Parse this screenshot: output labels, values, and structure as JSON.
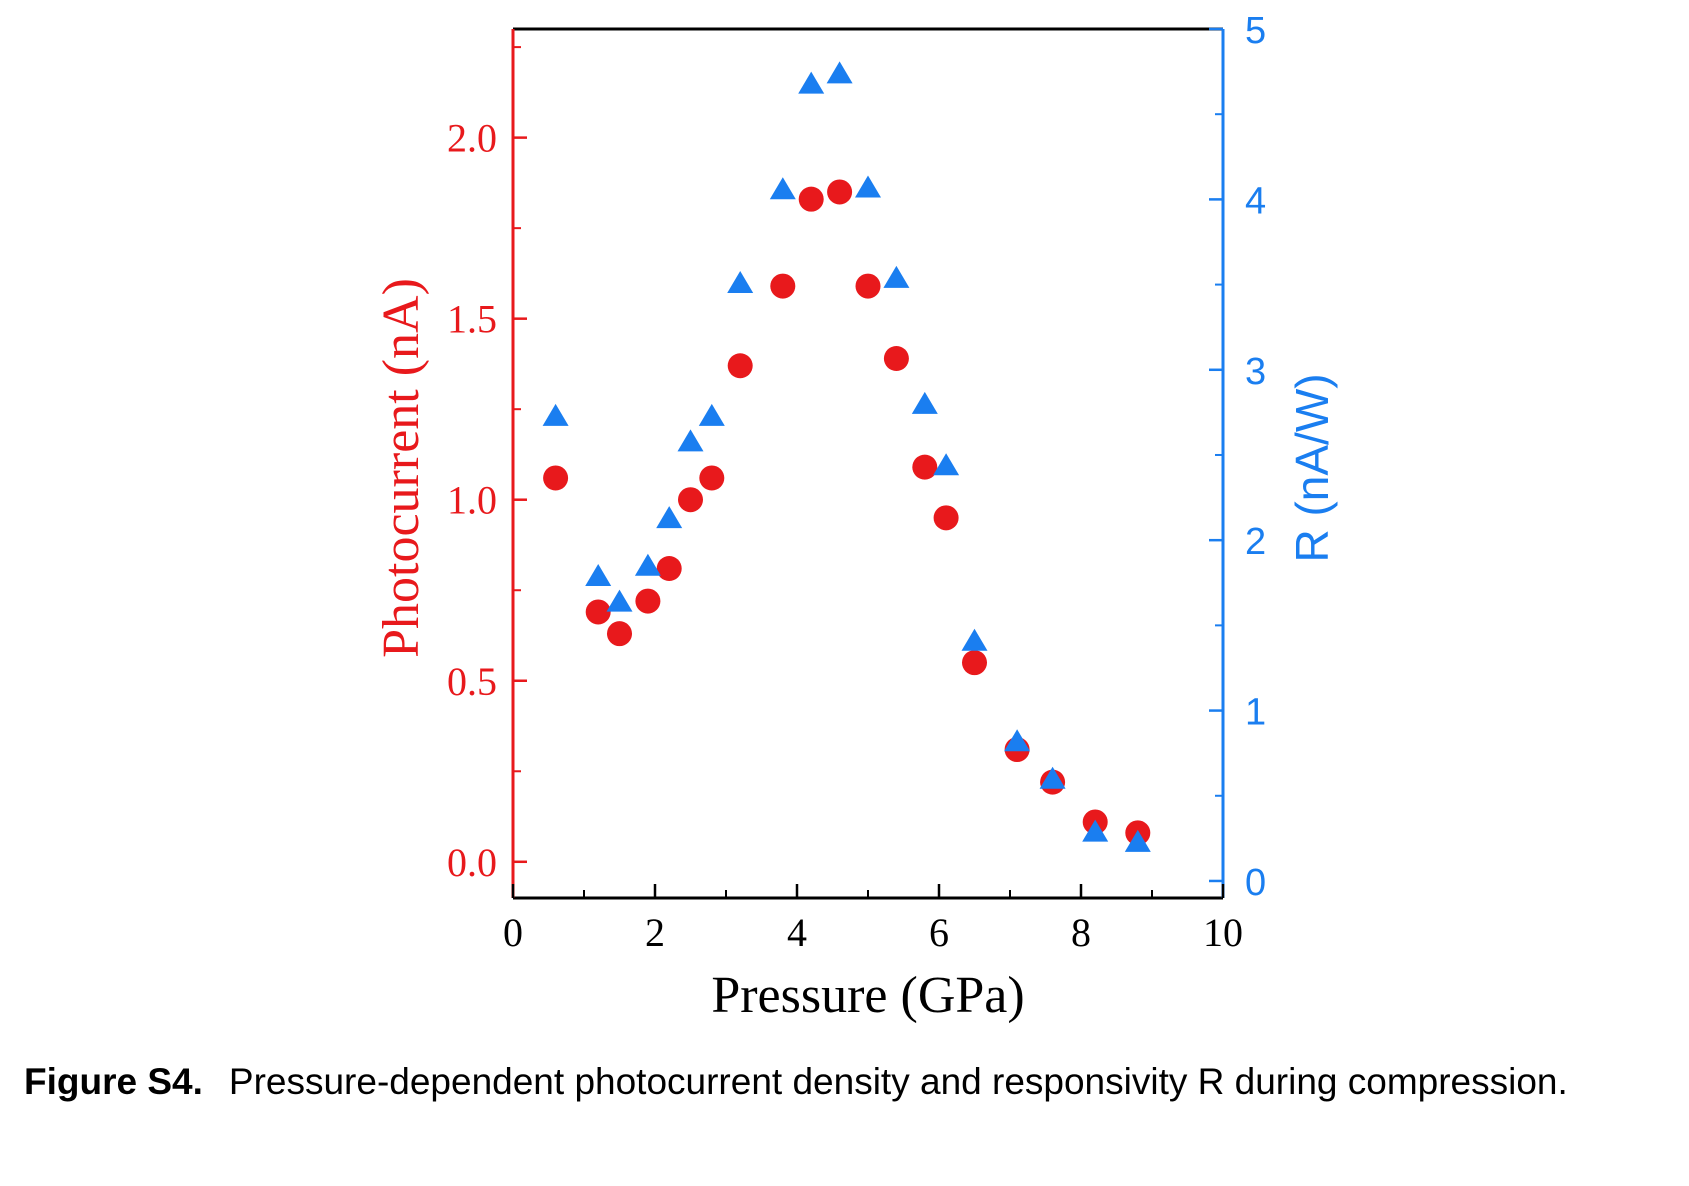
{
  "caption": {
    "label": "Figure S4.",
    "text": "Pressure-dependent photocurrent density and responsivity R during compression."
  },
  "chart_data": {
    "type": "scatter",
    "title": "",
    "xlabel": "Pressure (GPa)",
    "ylabel_left": "Photocurrent (nA)",
    "ylabel_right": "R (nA/W)",
    "xlim": [
      0,
      10
    ],
    "ylim_left": [
      -0.1,
      2.3
    ],
    "ylim_right": [
      -0.1,
      5.0
    ],
    "x_ticks": [
      0,
      2,
      4,
      6,
      8,
      10
    ],
    "x_tick_labels": [
      "0",
      "2",
      "4",
      "6",
      "8",
      "10"
    ],
    "y_left_ticks": [
      0.0,
      0.5,
      1.0,
      1.5,
      2.0
    ],
    "y_left_tick_labels": [
      "0.0",
      "0.5",
      "1.0",
      "1.5",
      "2.0"
    ],
    "y_right_ticks": [
      0,
      1,
      2,
      3,
      4,
      5
    ],
    "y_right_tick_labels": [
      "0",
      "1",
      "2",
      "3",
      "4",
      "5"
    ],
    "grid": false,
    "colors": {
      "left_axis": "#e8191c",
      "right_axis": "#1a7ef0",
      "frame": "#000000"
    },
    "series": [
      {
        "marker": "circle",
        "axis": "left",
        "color": "#e8191c",
        "x": [
          0.6,
          1.2,
          1.5,
          1.9,
          2.2,
          2.5,
          2.8,
          3.2,
          3.8,
          4.2,
          4.6,
          5.0,
          5.4,
          5.8,
          6.1,
          6.5,
          7.1,
          7.6,
          8.2,
          8.8
        ],
        "y": [
          1.06,
          0.69,
          0.63,
          0.72,
          0.81,
          1.0,
          1.06,
          1.37,
          1.59,
          1.83,
          1.85,
          1.59,
          1.39,
          1.09,
          0.95,
          0.55,
          0.31,
          0.22,
          0.11,
          0.08
        ]
      },
      {
        "marker": "triangle",
        "axis": "right",
        "color": "#1a7ef0",
        "x": [
          0.6,
          1.2,
          1.5,
          1.9,
          2.2,
          2.5,
          2.8,
          3.2,
          3.8,
          4.2,
          4.6,
          5.0,
          5.4,
          5.8,
          6.1,
          6.5,
          7.1,
          7.6,
          8.2,
          8.8
        ],
        "y": [
          2.72,
          1.78,
          1.63,
          1.84,
          2.12,
          2.57,
          2.72,
          3.5,
          4.05,
          4.67,
          4.73,
          4.06,
          3.53,
          2.79,
          2.43,
          1.4,
          0.81,
          0.59,
          0.28,
          0.22
        ]
      }
    ]
  }
}
